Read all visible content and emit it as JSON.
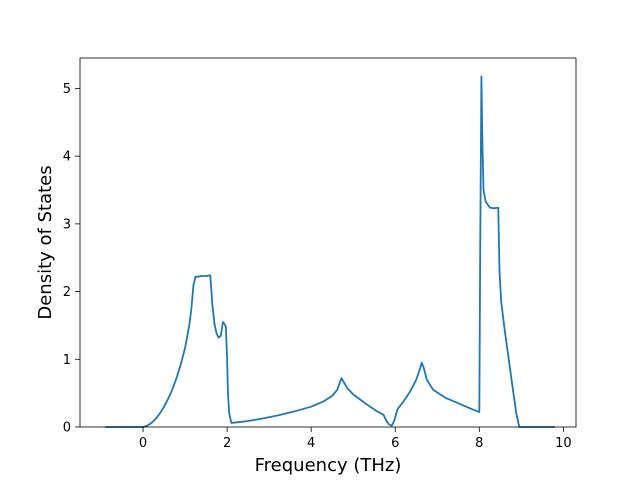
{
  "chart_data": {
    "type": "line",
    "title": "",
    "xlabel": "Frequency (THz)",
    "ylabel": "Density of States",
    "xlim": [
      -1.5,
      10.3
    ],
    "ylim": [
      0,
      5.45
    ],
    "xticks": [
      0,
      2,
      4,
      6,
      8,
      10
    ],
    "yticks": [
      0,
      1,
      2,
      3,
      4,
      5
    ],
    "grid": false,
    "legend": "none",
    "series": [
      {
        "color": "#1f77b4",
        "x": [
          -0.9,
          0.0,
          0.1,
          0.2,
          0.3,
          0.4,
          0.5,
          0.6,
          0.7,
          0.8,
          0.9,
          1.0,
          1.1,
          1.15,
          1.2,
          1.25,
          1.3,
          1.4,
          1.5,
          1.6,
          1.65,
          1.7,
          1.75,
          1.8,
          1.85,
          1.9,
          1.93,
          1.97,
          2.0,
          2.02,
          2.05,
          2.1,
          2.4,
          2.8,
          3.2,
          3.6,
          4.0,
          4.3,
          4.5,
          4.62,
          4.68,
          4.72,
          4.78,
          4.85,
          5.0,
          5.2,
          5.4,
          5.6,
          5.72,
          5.8,
          5.85,
          5.92,
          5.98,
          6.05,
          6.2,
          6.35,
          6.5,
          6.6,
          6.63,
          6.68,
          6.75,
          6.9,
          7.2,
          7.5,
          7.8,
          8.0,
          8.02,
          8.05,
          8.07,
          8.1,
          8.15,
          8.25,
          8.35,
          8.45,
          8.48,
          8.52,
          8.6,
          8.7,
          8.8,
          8.88,
          8.95,
          9.2,
          9.5,
          9.8
        ],
        "y": [
          0.0,
          0.0,
          0.02,
          0.06,
          0.12,
          0.2,
          0.3,
          0.42,
          0.56,
          0.73,
          0.93,
          1.17,
          1.5,
          1.75,
          2.1,
          2.22,
          2.22,
          2.23,
          2.23,
          2.24,
          1.8,
          1.52,
          1.38,
          1.32,
          1.35,
          1.55,
          1.53,
          1.48,
          1.0,
          0.5,
          0.2,
          0.06,
          0.08,
          0.12,
          0.17,
          0.23,
          0.3,
          0.38,
          0.46,
          0.55,
          0.65,
          0.72,
          0.66,
          0.58,
          0.48,
          0.39,
          0.3,
          0.22,
          0.18,
          0.08,
          0.04,
          0.02,
          0.1,
          0.26,
          0.38,
          0.52,
          0.7,
          0.88,
          0.95,
          0.87,
          0.7,
          0.55,
          0.43,
          0.35,
          0.27,
          0.22,
          2.5,
          5.18,
          4.3,
          3.5,
          3.33,
          3.24,
          3.23,
          3.24,
          2.3,
          1.85,
          1.45,
          1.0,
          0.55,
          0.2,
          0.0,
          0.0,
          0.0,
          0.0
        ]
      }
    ]
  }
}
